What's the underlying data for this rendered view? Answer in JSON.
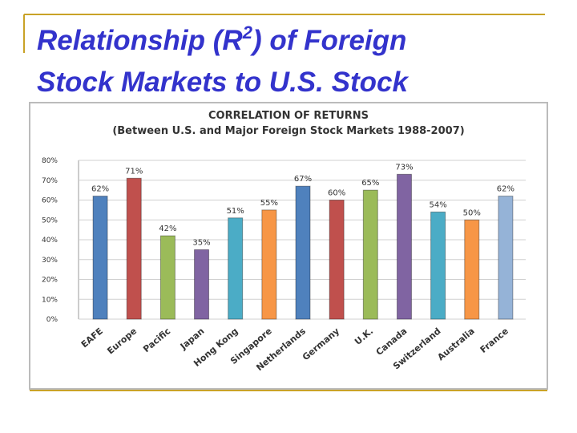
{
  "slide_title": {
    "before": "Relationship  (R",
    "superscript": "2",
    "after_line1": ") of Foreign",
    "line2": "Stock Markets to U.S. Stock"
  },
  "chart_data": {
    "type": "bar",
    "title": "CORRELATION OF RETURNS",
    "subtitle": "(Between U.S. and Major Foreign Stock Markets 1988-2007)",
    "categories": [
      "EAFE",
      "Europe",
      "Pacific",
      "Japan",
      "Hong Kong",
      "Singapore",
      "Netherlands",
      "Germany",
      "U.K.",
      "Canada",
      "Switzerland",
      "Australia",
      "France"
    ],
    "values": [
      62,
      71,
      42,
      35,
      51,
      55,
      67,
      60,
      65,
      73,
      54,
      50,
      62
    ],
    "value_labels": [
      "62%",
      "71%",
      "42%",
      "35%",
      "51%",
      "55%",
      "67%",
      "60%",
      "65%",
      "73%",
      "54%",
      "50%",
      "62%"
    ],
    "colors": [
      "#4f81bd",
      "#c0504d",
      "#9bbb59",
      "#8064a2",
      "#4bacc6",
      "#f79646",
      "#4f81bd",
      "#c0504d",
      "#9bbb59",
      "#8064a2",
      "#4bacc6",
      "#f79646",
      "#95b3d7"
    ],
    "ylim": [
      0,
      80
    ],
    "yticks": [
      {
        "value": 0,
        "label": "0%"
      },
      {
        "value": 10,
        "label": "10%"
      },
      {
        "value": 20,
        "label": "20%"
      },
      {
        "value": 30,
        "label": "30%"
      },
      {
        "value": 40,
        "label": "40%"
      },
      {
        "value": 50,
        "label": "50%"
      },
      {
        "value": 60,
        "label": "60%"
      },
      {
        "value": 70,
        "label": "70%"
      },
      {
        "value": 80,
        "label": "80%"
      }
    ],
    "grid": true
  }
}
